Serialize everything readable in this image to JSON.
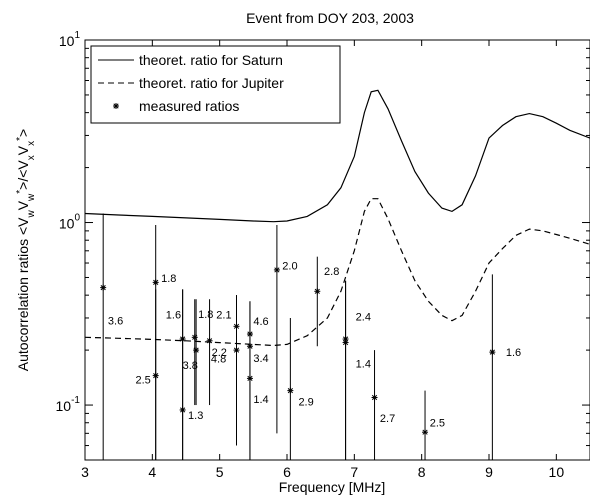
{
  "chart_data": {
    "type": "line",
    "title": "Event from DOY 203, 2003",
    "xlabel": "Frequency [MHz]",
    "ylabel": "Autocorrelation ratios <V₉V₉*>/<VₓVₓ*>",
    "ylabel_parts": {
      "base": "Autocorrelation ratios <V",
      "sub1": "w",
      "mid1": "V",
      "sub2": "w",
      "sup1": "*",
      "mid2": ">/<V",
      "sub3": "x",
      "mid3": "V",
      "sub4": "x",
      "sup2": "*",
      "end": ">"
    },
    "xlim": [
      3,
      10.5
    ],
    "ylim": [
      0.05,
      10
    ],
    "yscale": "log",
    "xticks": [
      3,
      4,
      5,
      6,
      7,
      8,
      9,
      10
    ],
    "yticks": [
      {
        "value": 0.1,
        "base": "10",
        "exp": "-1"
      },
      {
        "value": 1,
        "base": "10",
        "exp": "0"
      },
      {
        "value": 10,
        "base": "10",
        "exp": "1"
      }
    ],
    "grid": false,
    "legend_position": "top-left",
    "series": [
      {
        "name": "theoret. ratio for Saturn",
        "style": "solid",
        "x": [
          3.0,
          3.5,
          4.0,
          4.5,
          5.0,
          5.5,
          5.8,
          6.0,
          6.3,
          6.6,
          6.8,
          7.0,
          7.15,
          7.25,
          7.35,
          7.5,
          7.7,
          7.9,
          8.1,
          8.3,
          8.45,
          8.6,
          8.8,
          9.0,
          9.2,
          9.4,
          9.6,
          9.8,
          10.0,
          10.2,
          10.5
        ],
        "y": [
          1.12,
          1.1,
          1.08,
          1.06,
          1.04,
          1.02,
          1.01,
          1.02,
          1.08,
          1.25,
          1.55,
          2.3,
          4.0,
          5.2,
          5.3,
          4.2,
          2.8,
          1.9,
          1.45,
          1.2,
          1.15,
          1.25,
          1.8,
          2.9,
          3.4,
          3.8,
          3.95,
          3.8,
          3.5,
          3.2,
          2.9
        ]
      },
      {
        "name": "theoret. ratio for Jupiter",
        "style": "dashed",
        "x": [
          3.0,
          3.5,
          4.0,
          4.5,
          5.0,
          5.5,
          5.8,
          6.0,
          6.3,
          6.6,
          6.8,
          7.0,
          7.15,
          7.25,
          7.35,
          7.5,
          7.7,
          7.9,
          8.1,
          8.3,
          8.45,
          8.6,
          8.8,
          9.0,
          9.2,
          9.4,
          9.6,
          9.8,
          10.0,
          10.2,
          10.5
        ],
        "y": [
          0.235,
          0.232,
          0.229,
          0.225,
          0.22,
          0.215,
          0.212,
          0.215,
          0.24,
          0.3,
          0.42,
          0.7,
          1.15,
          1.35,
          1.35,
          1.05,
          0.7,
          0.48,
          0.37,
          0.31,
          0.29,
          0.31,
          0.42,
          0.6,
          0.72,
          0.85,
          0.92,
          0.9,
          0.86,
          0.82,
          0.76
        ]
      },
      {
        "name": "measured ratios",
        "style": "markers",
        "points": [
          {
            "x": 3.27,
            "y": 0.44,
            "ylow": 0.045,
            "yhigh": 1.12,
            "label": "3.6",
            "lx": 0.07,
            "ly": 0.66
          },
          {
            "x": 4.05,
            "y": 0.47,
            "ylow": 0.045,
            "yhigh": 0.97,
            "label": "1.8",
            "lx": 0.08,
            "ly": 1.06
          },
          {
            "x": 4.05,
            "y": 0.145,
            "ylow": 0.05,
            "yhigh": 0.43,
            "label": "2.5",
            "lx": -0.3,
            "ly": 0.95
          },
          {
            "x": 4.45,
            "y": 0.23,
            "ylow": 0.045,
            "yhigh": 0.43,
            "label": "1.6",
            "lx": -0.25,
            "ly": 1.36
          },
          {
            "x": 4.45,
            "y": 0.094,
            "ylow": 0.045,
            "yhigh": 0.43,
            "label": "1.3",
            "lx": 0.08,
            "ly": 0.94
          },
          {
            "x": 4.63,
            "y": 0.235,
            "ylow": 0.1,
            "yhigh": 0.38,
            "label": "1.8",
            "lx": 0.05,
            "ly": 1.34
          },
          {
            "x": 4.65,
            "y": 0.2,
            "ylow": 0.1,
            "yhigh": 0.38,
            "label": "3.8",
            "lx": -0.2,
            "ly": 0.83
          },
          {
            "x": 4.85,
            "y": 0.225,
            "ylow": 0.1,
            "yhigh": 0.38,
            "label": "2.2",
            "lx": 0.03,
            "ly": 0.87
          },
          {
            "x": 5.25,
            "y": 0.27,
            "ylow": 0.06,
            "yhigh": 0.4,
            "label": "2.1",
            "lx": -0.3,
            "ly": 1.16
          },
          {
            "x": 5.25,
            "y": 0.2,
            "ylow": 0.06,
            "yhigh": 0.4,
            "label": "4.8",
            "lx": -0.38,
            "ly": 0.9
          },
          {
            "x": 5.45,
            "y": 0.245,
            "ylow": 0.045,
            "yhigh": 0.37,
            "label": "4.6",
            "lx": 0.05,
            "ly": 1.18
          },
          {
            "x": 5.45,
            "y": 0.21,
            "ylow": 0.045,
            "yhigh": 0.37,
            "label": "3.4",
            "lx": 0.05,
            "ly": 0.86
          },
          {
            "x": 5.45,
            "y": 0.14,
            "ylow": 0.045,
            "yhigh": 0.37,
            "label": "1.4",
            "lx": 0.05,
            "ly": 0.77
          },
          {
            "x": 5.85,
            "y": 0.55,
            "ylow": 0.07,
            "yhigh": 0.97,
            "label": "2.0",
            "lx": 0.08,
            "ly": 1.06
          },
          {
            "x": 6.05,
            "y": 0.12,
            "ylow": 0.05,
            "yhigh": 0.3,
            "label": "2.9",
            "lx": 0.12,
            "ly": 0.87
          },
          {
            "x": 6.45,
            "y": 0.42,
            "ylow": 0.21,
            "yhigh": 0.65,
            "label": "2.8",
            "lx": 0.1,
            "ly": 1.29
          },
          {
            "x": 6.87,
            "y": 0.23,
            "ylow": 0.045,
            "yhigh": 0.48,
            "label": "2.4",
            "lx": 0.15,
            "ly": 1.33
          },
          {
            "x": 6.87,
            "y": 0.22,
            "ylow": 0.045,
            "yhigh": 0.48,
            "label": "1.4",
            "lx": 0.15,
            "ly": 0.77
          },
          {
            "x": 7.3,
            "y": 0.11,
            "ylow": 0.045,
            "yhigh": 0.2,
            "label": "2.7",
            "lx": 0.08,
            "ly": 0.77
          },
          {
            "x": 8.05,
            "y": 0.071,
            "ylow": 0.045,
            "yhigh": 0.12,
            "label": "2.5",
            "lx": 0.07,
            "ly": 1.13
          },
          {
            "x": 9.05,
            "y": 0.195,
            "ylow": 0.045,
            "yhigh": 0.52,
            "label": "1.6",
            "lx": 0.2,
            "ly": 1.0
          }
        ]
      }
    ]
  }
}
